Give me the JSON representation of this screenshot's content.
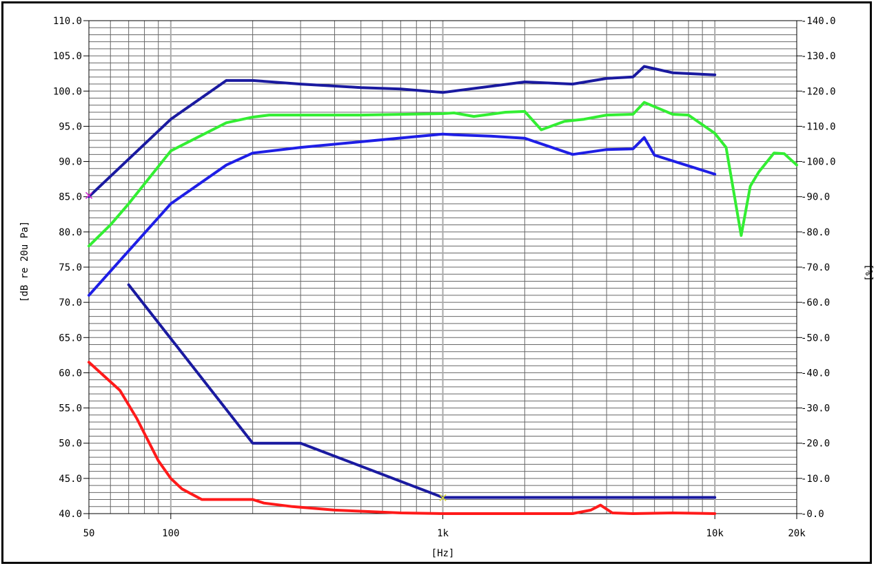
{
  "chart_data": {
    "type": "line",
    "xlabel": "[Hz]",
    "ylabel": "[dB re 20u Pa]",
    "y2label": "[%]",
    "x_scale": "log",
    "xlim": [
      50,
      20000
    ],
    "ylim": [
      40,
      110
    ],
    "y2lim": [
      0,
      140
    ],
    "x_ticks": [
      {
        "value": 50,
        "label": "50"
      },
      {
        "value": 100,
        "label": "100"
      },
      {
        "value": 1000,
        "label": "1k"
      },
      {
        "value": 10000,
        "label": "10k"
      },
      {
        "value": 20000,
        "label": "20k"
      }
    ],
    "y_ticks": [
      "40.0",
      "45.0",
      "50.0",
      "55.0",
      "60.0",
      "65.0",
      "70.0",
      "75.0",
      "80.0",
      "85.0",
      "90.0",
      "95.0",
      "100.0",
      "105.0",
      "110.0"
    ],
    "y2_ticks": [
      "-0.0",
      "-10.0",
      "-20.0",
      "-30.0",
      "-40.0",
      "-50.0",
      "-60.0",
      "-70.0",
      "-80.0",
      "-90.0",
      "-100.0",
      "-110.0",
      "-120.0",
      "-130.0",
      "-140.0"
    ],
    "grid": true,
    "series": [
      {
        "axis": "left",
        "color": "#1a1aa0",
        "x": [
          50,
          100,
          160,
          200,
          300,
          500,
          700,
          1000,
          2000,
          3000,
          4000,
          5000,
          5500,
          7000,
          10000
        ],
        "y": [
          85,
          96,
          101.5,
          101.5,
          101,
          100.5,
          100.3,
          99.8,
          101.3,
          101,
          101.8,
          102,
          103.5,
          102.6,
          102.3
        ]
      },
      {
        "axis": "left",
        "color": "#33ee33",
        "x": [
          50,
          60,
          70,
          100,
          160,
          200,
          230,
          300,
          500,
          1000,
          1100,
          1300,
          1700,
          2000,
          2300,
          2800,
          3300,
          4000,
          5000,
          5500,
          7000,
          8000,
          10000,
          11000,
          12500,
          13500,
          14500,
          16500,
          18000,
          20000
        ],
        "y": [
          78,
          81,
          84,
          91.5,
          95.5,
          96.3,
          96.6,
          96.6,
          96.6,
          96.8,
          96.9,
          96.4,
          97,
          97.1,
          94.5,
          95.7,
          96,
          96.6,
          96.7,
          98.4,
          96.7,
          96.6,
          94,
          92,
          79.5,
          86.5,
          88.5,
          91.2,
          91.1,
          89.5
        ]
      },
      {
        "axis": "left",
        "color": "#1e1ee6",
        "x": [
          50,
          100,
          160,
          200,
          300,
          500,
          1000,
          1100,
          1500,
          2000,
          3000,
          4000,
          5000,
          5500,
          6000,
          10000
        ],
        "y": [
          71,
          84,
          89.5,
          91.2,
          92,
          92.8,
          93.9,
          93.8,
          93.6,
          93.3,
          91,
          91.7,
          91.8,
          93.4,
          90.9,
          88.2
        ]
      },
      {
        "axis": "left",
        "color": "#1a1aa0",
        "x": [
          70,
          200,
          300,
          1000,
          10000
        ],
        "y": [
          72.5,
          50,
          50,
          42.3,
          42.3
        ]
      },
      {
        "axis": "left",
        "color": "#ff1a1a",
        "x": [
          50,
          65,
          75,
          90,
          100,
          110,
          130,
          200,
          220,
          280,
          400,
          700,
          1000,
          3000,
          3500,
          3800,
          4200,
          5000,
          7000,
          10000
        ],
        "y": [
          61.5,
          57.5,
          53.5,
          47.5,
          45,
          43.5,
          42,
          42,
          41.5,
          41,
          40.5,
          40.1,
          40,
          40,
          40.5,
          41.2,
          40.1,
          40,
          40.1,
          40
        ]
      }
    ],
    "markers": [
      {
        "x": 50,
        "y": 85.2,
        "symbol": "×",
        "color": "#cc22cc"
      },
      {
        "x": 1000,
        "y": 42.3,
        "symbol": "×",
        "color": "#dddd33"
      }
    ]
  }
}
